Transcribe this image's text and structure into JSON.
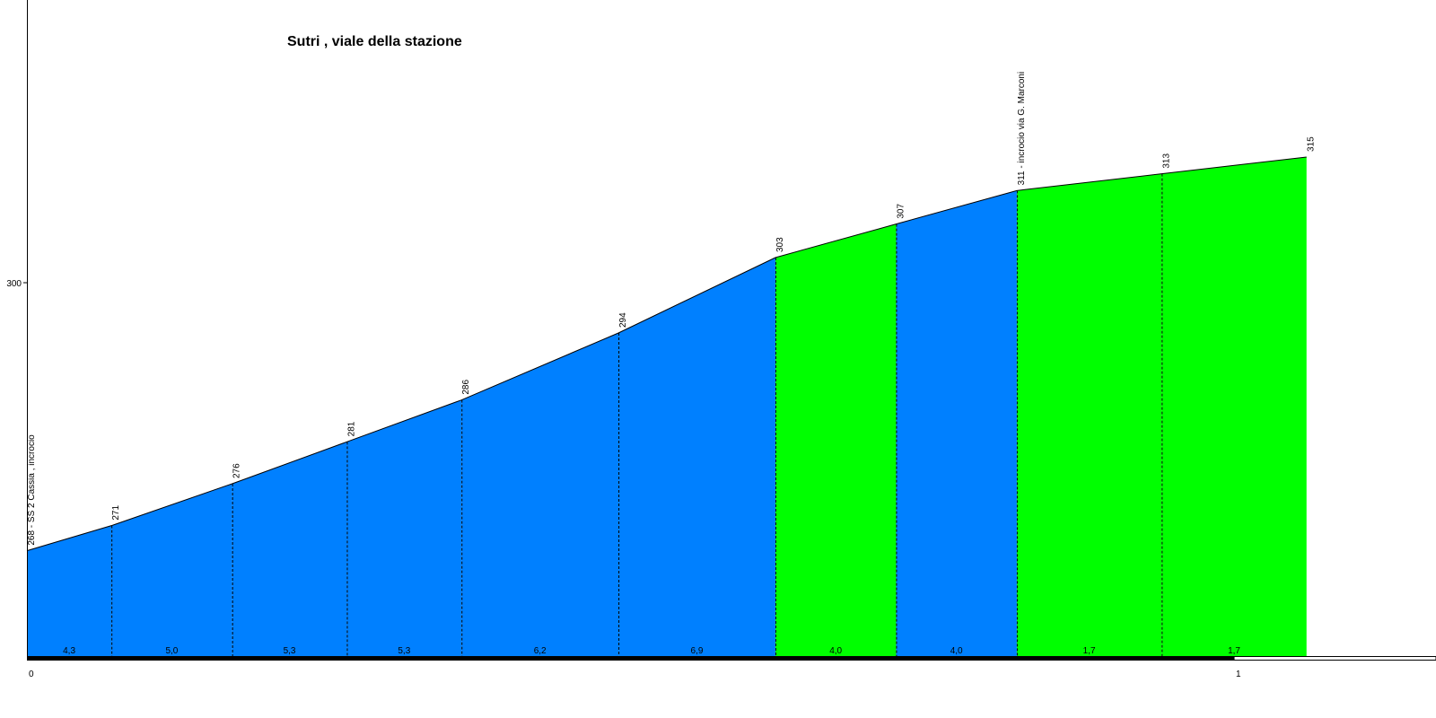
{
  "chart_data": {
    "type": "area",
    "title": "Sutri , viale della stazione",
    "xlabel": "",
    "ylabel": "",
    "x": [
      0,
      0.07,
      0.17,
      0.265,
      0.36,
      0.49,
      0.62,
      0.72,
      0.82,
      0.94,
      1.06
    ],
    "elevation": [
      268,
      271,
      276,
      281,
      286,
      294,
      303,
      307,
      311,
      313,
      315
    ],
    "point_labels": [
      "268 - SS 2 Cassia , incrocio",
      "271",
      "276",
      "281",
      "286",
      "294",
      "303",
      "307",
      "311 - incrocio via G. Marconi",
      "313",
      "315"
    ],
    "segment_gradients": [
      "4,3",
      "5,0",
      "5,3",
      "5,3",
      "6,2",
      "6,9",
      "4,0",
      "4,0",
      "1,7",
      "1,7"
    ],
    "segment_colors": [
      "#0080ff",
      "#0080ff",
      "#0080ff",
      "#0080ff",
      "#0080ff",
      "#0080ff",
      "#00ff00",
      "#0080ff",
      "#00ff00",
      "#00ff00"
    ],
    "y_ticks": [
      300
    ],
    "y_tick_labels": [
      "300"
    ],
    "x_ticks": [
      0,
      1
    ],
    "x_tick_labels": [
      "0",
      "1"
    ],
    "ylim": [
      255,
      330
    ],
    "xlim": [
      0,
      1.11
    ],
    "grid": false
  }
}
